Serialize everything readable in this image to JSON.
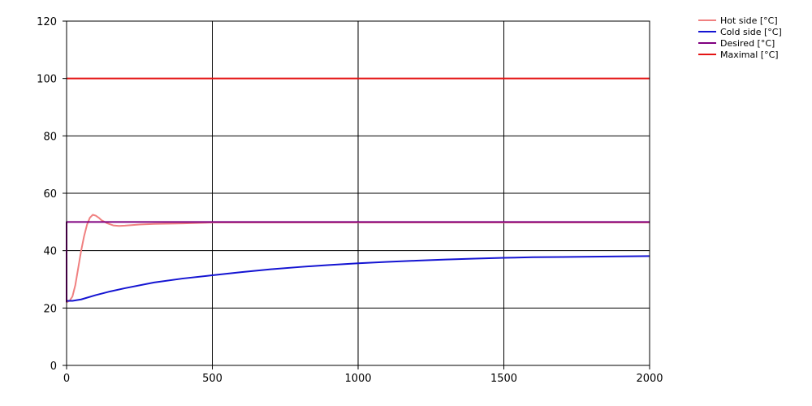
{
  "chart_data": {
    "type": "line",
    "xlim": [
      0,
      2000
    ],
    "ylim": [
      0,
      120
    ],
    "x_ticks": [
      0,
      500,
      1000,
      1500,
      2000
    ],
    "y_ticks": [
      0,
      20,
      40,
      60,
      80,
      100,
      120
    ],
    "grid": true,
    "legend_position": "top-right",
    "series": [
      {
        "name": "Hot side [°C]",
        "color": "#f08080",
        "x": [
          0,
          10,
          20,
          30,
          40,
          50,
          60,
          70,
          80,
          90,
          100,
          110,
          120,
          140,
          160,
          180,
          200,
          250,
          300,
          400,
          500,
          600,
          700,
          800,
          900,
          1000,
          1200,
          1400,
          1600,
          1800,
          2000
        ],
        "y": [
          22,
          22.5,
          24,
          28,
          34,
          40,
          45,
          49,
          51.5,
          52.5,
          52.2,
          51.5,
          50.6,
          49.5,
          48.8,
          48.6,
          48.7,
          49.1,
          49.3,
          49.5,
          49.8,
          49.8,
          49.8,
          49.8,
          49.8,
          49.8,
          49.8,
          49.8,
          49.8,
          49.8,
          49.8
        ]
      },
      {
        "name": "Cold side [°C]",
        "color": "#1414d2",
        "x": [
          0,
          20,
          50,
          100,
          150,
          200,
          300,
          400,
          500,
          600,
          700,
          800,
          900,
          1000,
          1100,
          1200,
          1300,
          1400,
          1500,
          1600,
          1700,
          1800,
          1900,
          2000
        ],
        "y": [
          22.5,
          22.5,
          23,
          24.5,
          25.8,
          26.9,
          28.9,
          30.3,
          31.4,
          32.5,
          33.5,
          34.3,
          35,
          35.6,
          36.1,
          36.5,
          36.9,
          37.2,
          37.5,
          37.7,
          37.8,
          37.9,
          38,
          38.1
        ]
      },
      {
        "name": "Desired [°C]",
        "color": "#800080",
        "x": [
          0,
          0,
          2000
        ],
        "y": [
          22,
          50,
          50
        ]
      },
      {
        "name": "Maximal [°C]",
        "color": "#e41414",
        "x": [
          0,
          2000
        ],
        "y": [
          100,
          100
        ]
      }
    ]
  }
}
